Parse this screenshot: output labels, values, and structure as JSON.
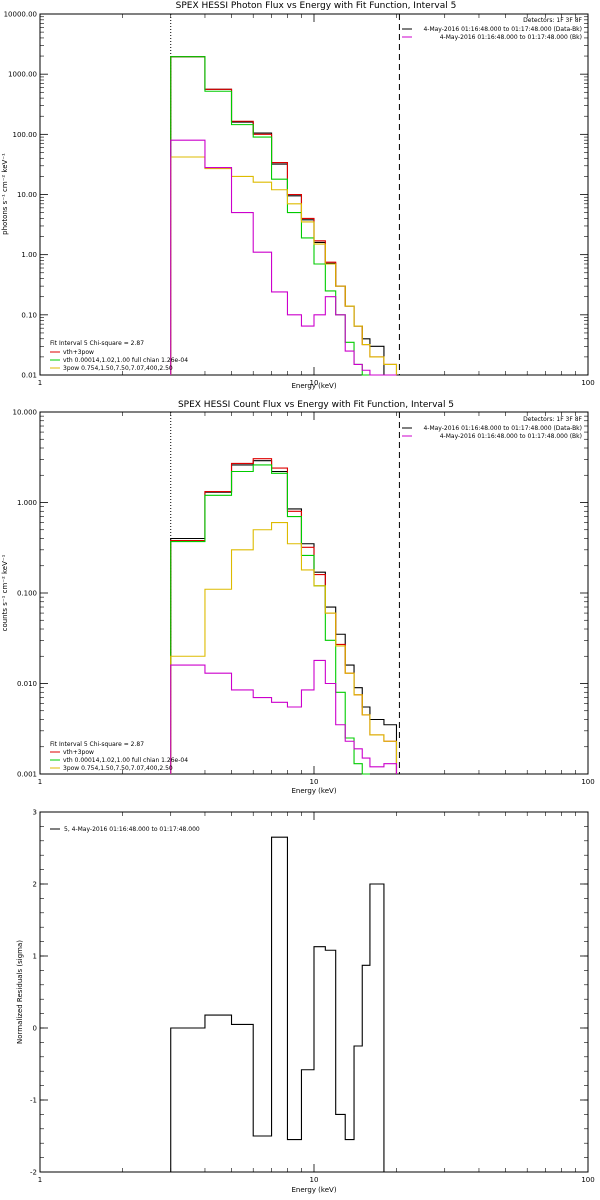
{
  "chart_data": [
    {
      "type": "line",
      "title": "SPEX HESSI Photon Flux vs Energy with Fit Function, Interval 5",
      "xlabel": "Energy (keV)",
      "ylabel": "photons s⁻¹ cm⁻² keV⁻¹",
      "xscale": "log",
      "yscale": "log",
      "xlim": [
        1,
        100
      ],
      "ylim": [
        0.01,
        10000
      ],
      "x_ticks": [
        "1",
        "10",
        "100"
      ],
      "y_ticks": [
        "0.01",
        "0.10",
        "1.00",
        "10.00",
        "100.00",
        "1000.00",
        "10000.00"
      ],
      "vlines": [
        {
          "x": 3,
          "style": "dotted"
        },
        {
          "x": 20.5,
          "style": "dashed"
        }
      ],
      "bin_edges": [
        3,
        4,
        5,
        6,
        7,
        8,
        9,
        10,
        11,
        12,
        13,
        14,
        15,
        16,
        18,
        20
      ],
      "legend_top": {
        "title": "Detectors: 1F 3F 8F",
        "entries": [
          {
            "label": "4-May-2016 01:16:48.000 to 01:17:48.000 (Data-Bk)",
            "color": "#000000"
          },
          {
            "label": "4-May-2016 01:16:48.000 to 01:17:48.000 (Bk)",
            "color": "#cc00cc"
          }
        ]
      },
      "legend_bottom": {
        "title": "Fit Interval 5   Chi-square = 2.87",
        "entries": [
          {
            "label": "vth+3pow",
            "color": "#dd0000"
          },
          {
            "label": "vth 0.00014,1.02,1.00   full chian 1.26e-04",
            "color": "#00cc00"
          },
          {
            "label": "3pow 0.754,1.50,7.50,7.07,400,2.50",
            "color": "#ddbb00"
          }
        ]
      },
      "series": [
        {
          "color": "#000000",
          "values": [
            1950,
            560,
            160,
            105,
            32,
            9.5,
            3.8,
            1.6,
            0.72,
            0.3,
            0.14,
            0.065,
            0.04,
            0.03,
            null
          ]
        },
        {
          "color": "#dd0000",
          "values": [
            1950,
            560,
            165,
            100,
            34,
            10,
            4.0,
            1.7,
            0.75,
            0.3,
            0.14,
            0.065,
            0.032,
            0.02,
            0.015
          ]
        },
        {
          "color": "#00cc00",
          "values": [
            1950,
            520,
            145,
            90,
            18,
            5.0,
            1.9,
            0.7,
            0.25,
            0.1,
            0.035,
            0.015,
            0.01,
            null,
            null
          ]
        },
        {
          "color": "#ddbb00",
          "values": [
            42,
            27,
            20,
            16,
            12,
            7.0,
            3.5,
            1.5,
            0.7,
            0.3,
            0.14,
            0.065,
            0.032,
            0.02,
            0.015
          ]
        },
        {
          "color": "#cc00cc",
          "values": [
            80,
            28,
            5.0,
            1.1,
            0.24,
            0.1,
            0.065,
            0.1,
            0.2,
            0.1,
            0.025,
            0.015,
            0.012,
            0.01,
            0.01
          ]
        }
      ]
    },
    {
      "type": "line",
      "title": "SPEX HESSI Count Flux vs Energy with Fit Function, Interval 5",
      "xlabel": "Energy (keV)",
      "ylabel": "counts s⁻¹ cm⁻² keV⁻¹",
      "xscale": "log",
      "yscale": "log",
      "xlim": [
        1,
        100
      ],
      "ylim": [
        0.001,
        10
      ],
      "x_ticks": [
        "1",
        "10",
        "100"
      ],
      "y_ticks": [
        "0.001",
        "0.010",
        "0.100",
        "1.000",
        "10.000"
      ],
      "vlines": [
        {
          "x": 3,
          "style": "dotted"
        },
        {
          "x": 20.5,
          "style": "dashed"
        }
      ],
      "bin_edges": [
        3,
        4,
        5,
        6,
        7,
        8,
        9,
        10,
        11,
        12,
        13,
        14,
        15,
        16,
        18,
        20
      ],
      "legend_top": {
        "title": "Detectors: 1F 3F 8F",
        "entries": [
          {
            "label": "4-May-2016 01:16:48.000 to 01:17:48.000 (Data-Bk)",
            "color": "#000000"
          },
          {
            "label": "4-May-2016 01:16:48.000 to 01:17:48.000 (Bk)",
            "color": "#cc00cc"
          }
        ]
      },
      "legend_bottom": {
        "title": "Fit Interval 5   Chi-square = 2.87",
        "entries": [
          {
            "label": "vth+3pow",
            "color": "#dd0000"
          },
          {
            "label": "vth 0.00014,1.02,1.00   full chian 1.26e-04",
            "color": "#00cc00"
          },
          {
            "label": "3pow 0.754,1.50,7.50,7.07,400,2.50",
            "color": "#ddbb00"
          }
        ]
      },
      "series": [
        {
          "color": "#000000",
          "values": [
            0.4,
            1.3,
            2.6,
            2.9,
            2.2,
            0.85,
            0.35,
            0.17,
            0.07,
            0.035,
            0.016,
            0.009,
            0.0055,
            0.004,
            0.0035
          ]
        },
        {
          "color": "#dd0000",
          "values": [
            0.38,
            1.32,
            2.7,
            3.05,
            2.4,
            0.8,
            0.32,
            0.16,
            0.06,
            0.027,
            0.013,
            0.0075,
            0.0045,
            0.0027,
            0.0023
          ]
        },
        {
          "color": "#00cc00",
          "values": [
            0.37,
            1.2,
            2.2,
            2.6,
            2.1,
            0.7,
            0.26,
            0.12,
            0.03,
            0.008,
            0.0025,
            0.0013,
            0.001,
            null,
            null
          ]
        },
        {
          "color": "#ddbb00",
          "values": [
            0.02,
            0.11,
            0.3,
            0.5,
            0.6,
            0.35,
            0.18,
            0.12,
            0.06,
            0.026,
            0.013,
            0.0075,
            0.0045,
            0.0027,
            0.0023
          ]
        },
        {
          "color": "#cc00cc",
          "values": [
            0.016,
            0.013,
            0.0085,
            0.007,
            0.0062,
            0.0055,
            0.0085,
            0.018,
            0.01,
            0.0035,
            0.0023,
            0.0019,
            0.0015,
            0.0012,
            0.0013
          ]
        }
      ]
    },
    {
      "type": "line",
      "title": "",
      "xlabel": "Energy (keV)",
      "ylabel": "Normalized Residuals (sigma)",
      "xscale": "log",
      "yscale": "linear",
      "xlim": [
        1,
        100
      ],
      "ylim": [
        -2,
        3
      ],
      "x_ticks": [
        "1",
        "10",
        "100"
      ],
      "y_ticks": [
        "-2",
        "-1",
        "0",
        "1",
        "2",
        "3"
      ],
      "bin_edges": [
        3,
        4,
        5,
        6,
        7,
        8,
        9,
        10,
        11,
        12,
        13,
        14,
        15,
        16,
        18,
        20
      ],
      "legend": {
        "label": "5,  4-May-2016 01:16:48.000 to 01:17:48.000",
        "color": "#000000"
      },
      "series": [
        {
          "color": "#000000",
          "values": [
            0.0,
            0.18,
            0.05,
            -1.5,
            2.65,
            -1.55,
            -0.58,
            1.13,
            1.08,
            -1.2,
            -1.55,
            -0.25,
            0.87,
            2.0,
            null
          ]
        }
      ]
    }
  ]
}
